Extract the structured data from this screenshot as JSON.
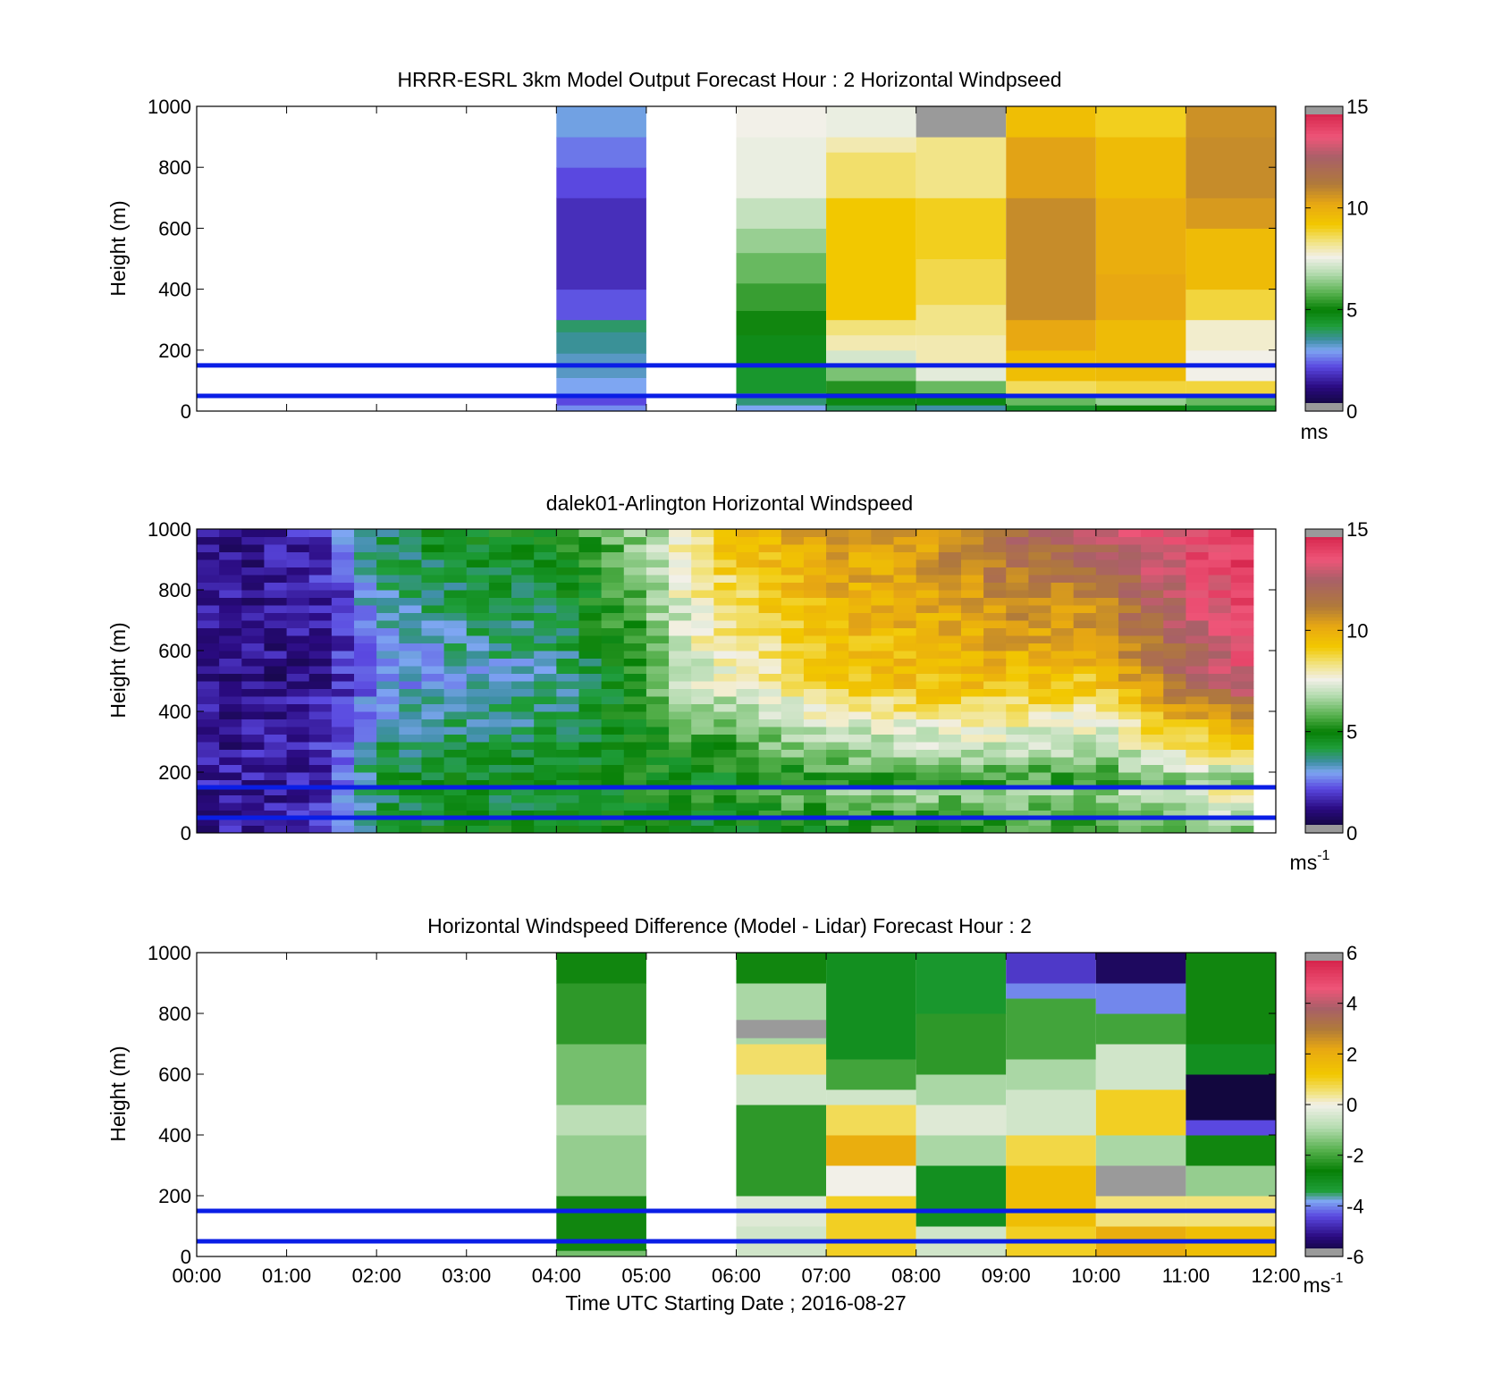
{
  "figure": {
    "x_axis": {
      "label": "Time UTC  Starting Date ; 2016-08-27",
      "ticks": [
        "00:00",
        "01:00",
        "02:00",
        "03:00",
        "04:00",
        "05:00",
        "06:00",
        "07:00",
        "08:00",
        "09:00",
        "10:00",
        "11:00",
        "12:00"
      ]
    },
    "y_ticks": [
      "0",
      "200",
      "400",
      "600",
      "800",
      "1000"
    ],
    "reference_heights_m": [
      50,
      150
    ],
    "reference_line_color": "#0a1ee6"
  },
  "panels": [
    {
      "title": "HRRR-ESRL 3km Model Output   Forecast Hour : 2 Horizontal Windpseed",
      "ylabel": "Height (m)",
      "colorbar": {
        "ticks": [
          "0",
          "5",
          "10",
          "15"
        ],
        "unit": "ms",
        "unit_sup": ""
      }
    },
    {
      "title": "dalek01-Arlington  Horizontal Windspeed",
      "ylabel": "Height (m)",
      "colorbar": {
        "ticks": [
          "0",
          "5",
          "10",
          "15"
        ],
        "unit": "ms",
        "unit_sup": "-1"
      }
    },
    {
      "title": "Horizontal Windspeed Difference (Model - Lidar) Forecast Hour : 2",
      "ylabel": "Height (m)",
      "colorbar": {
        "ticks": [
          "-6",
          "-4",
          "-2",
          "0",
          "2",
          "4",
          "6"
        ],
        "unit": "ms",
        "unit_sup": "-1"
      }
    }
  ],
  "chart_data": [
    {
      "type": "heatmap",
      "title": "HRRR-ESRL 3km Model Output   Forecast Hour : 2 Horizontal Windpseed",
      "xlabel": "",
      "ylabel": "Height (m)",
      "xlim_hours": [
        0,
        12
      ],
      "ylim": [
        0,
        1000
      ],
      "clim": [
        0,
        15
      ],
      "colorbar_unit": "ms",
      "columns": [
        {
          "start_h": 4,
          "end_h": 5,
          "segments": [
            [
              0,
              20,
              2.8
            ],
            [
              20,
              50,
              2.2
            ],
            [
              50,
              110,
              3.0
            ],
            [
              110,
              190,
              3.3
            ],
            [
              190,
              260,
              3.6
            ],
            [
              260,
              300,
              3.9
            ],
            [
              300,
              400,
              2.3
            ],
            [
              400,
              700,
              1.8
            ],
            [
              700,
              800,
              2.2
            ],
            [
              800,
              900,
              2.6
            ],
            [
              900,
              1000,
              3.1
            ]
          ]
        },
        {
          "start_h": 6,
          "end_h": 7,
          "segments": [
            [
              0,
              20,
              3.0
            ],
            [
              20,
              60,
              3.8
            ],
            [
              60,
              150,
              4.4
            ],
            [
              150,
              250,
              4.7
            ],
            [
              250,
              330,
              5.1
            ],
            [
              330,
              420,
              5.5
            ],
            [
              420,
              520,
              6.0
            ],
            [
              520,
              600,
              6.5
            ],
            [
              600,
              700,
              7.0
            ],
            [
              700,
              900,
              7.5
            ],
            [
              900,
              1000,
              7.6
            ]
          ]
        },
        {
          "start_h": 7,
          "end_h": 8,
          "segments": [
            [
              0,
              20,
              4.0
            ],
            [
              20,
              60,
              4.8
            ],
            [
              60,
              100,
              5.3
            ],
            [
              100,
              150,
              6.2
            ],
            [
              150,
              200,
              7.2
            ],
            [
              200,
              250,
              8.0
            ],
            [
              250,
              300,
              8.4
            ],
            [
              300,
              700,
              9.2
            ],
            [
              700,
              850,
              8.5
            ],
            [
              850,
              900,
              8.0
            ],
            [
              900,
              1000,
              7.5
            ]
          ]
        },
        {
          "start_h": 8,
          "end_h": 9,
          "segments": [
            [
              0,
              20,
              3.5
            ],
            [
              20,
              60,
              4.8
            ],
            [
              60,
              100,
              6.0
            ],
            [
              100,
              150,
              7.4
            ],
            [
              150,
              250,
              8.0
            ],
            [
              250,
              350,
              8.3
            ],
            [
              350,
              500,
              8.7
            ],
            [
              500,
              700,
              9.0
            ],
            [
              700,
              900,
              8.3
            ],
            [
              900,
              1000,
              15.2
            ]
          ]
        },
        {
          "start_h": 9,
          "end_h": 10,
          "segments": [
            [
              0,
              20,
              4.5
            ],
            [
              20,
              50,
              6.0
            ],
            [
              50,
              100,
              8.6
            ],
            [
              100,
              200,
              9.5
            ],
            [
              200,
              300,
              10.2
            ],
            [
              300,
              700,
              10.8
            ],
            [
              700,
              900,
              10.3
            ],
            [
              900,
              1000,
              9.5
            ]
          ]
        },
        {
          "start_h": 10,
          "end_h": 11,
          "segments": [
            [
              0,
              20,
              5.0
            ],
            [
              20,
              50,
              6.5
            ],
            [
              50,
              100,
              8.8
            ],
            [
              100,
              300,
              9.6
            ],
            [
              300,
              450,
              10.2
            ],
            [
              450,
              700,
              10.0
            ],
            [
              700,
              900,
              9.6
            ],
            [
              900,
              1000,
              9.0
            ]
          ]
        },
        {
          "start_h": 11,
          "end_h": 12,
          "segments": [
            [
              0,
              20,
              4.5
            ],
            [
              20,
              50,
              6.0
            ],
            [
              50,
              100,
              8.8
            ],
            [
              100,
              200,
              7.6
            ],
            [
              200,
              300,
              7.8
            ],
            [
              300,
              400,
              8.8
            ],
            [
              400,
              600,
              9.6
            ],
            [
              600,
              700,
              10.5
            ],
            [
              700,
              900,
              10.8
            ],
            [
              900,
              1000,
              10.7
            ]
          ]
        }
      ]
    },
    {
      "type": "heatmap",
      "title": "dalek01-Arlington  Horizontal Windspeed",
      "xlabel": "",
      "ylabel": "Height (m)",
      "xlim_hours": [
        0,
        12
      ],
      "ylim": [
        0,
        1000
      ],
      "clim": [
        0,
        15
      ],
      "colorbar_unit": "ms-1",
      "data_end_h": 11.85,
      "time_bins_per_hour": 4,
      "hourly_profile_anchors_ms": [
        {
          "h": 0.0,
          "surface": 1.5,
          "mid": 1.2,
          "top": 1.3
        },
        {
          "h": 1.0,
          "surface": 1.6,
          "mid": 1.2,
          "top": 1.5
        },
        {
          "h": 1.5,
          "surface": 2.0,
          "mid": 1.5,
          "top": 2.0
        },
        {
          "h": 2.0,
          "surface": 4.5,
          "mid": 2.8,
          "top": 4.0
        },
        {
          "h": 3.0,
          "surface": 4.8,
          "mid": 3.2,
          "top": 4.8
        },
        {
          "h": 4.0,
          "surface": 4.6,
          "mid": 3.4,
          "top": 5.0
        },
        {
          "h": 5.0,
          "surface": 4.8,
          "mid": 5.5,
          "top": 6.5
        },
        {
          "h": 5.5,
          "surface": 4.4,
          "mid": 7.2,
          "top": 8.5
        },
        {
          "h": 6.0,
          "surface": 4.5,
          "mid": 7.5,
          "top": 9.5
        },
        {
          "h": 7.0,
          "surface": 5.0,
          "mid": 9.0,
          "top": 10.5
        },
        {
          "h": 8.0,
          "surface": 5.2,
          "mid": 9.5,
          "top": 10.5
        },
        {
          "h": 9.0,
          "surface": 5.3,
          "mid": 9.6,
          "top": 12.0
        },
        {
          "h": 10.0,
          "surface": 5.2,
          "mid": 9.2,
          "top": 12.5
        },
        {
          "h": 11.0,
          "surface": 6.0,
          "mid": 12.0,
          "top": 13.8
        },
        {
          "h": 11.85,
          "surface": 6.0,
          "mid": 13.5,
          "top": 14.5
        }
      ]
    },
    {
      "type": "heatmap",
      "title": "Horizontal Windspeed Difference (Model - Lidar) Forecast Hour : 2",
      "xlabel": "Time UTC  Starting Date ; 2016-08-27",
      "ylabel": "Height (m)",
      "xlim_hours": [
        0,
        12
      ],
      "ylim": [
        0,
        1000
      ],
      "clim": [
        -6,
        6
      ],
      "colorbar_unit": "ms-1",
      "columns": [
        {
          "start_h": 4,
          "end_h": 5,
          "segments": [
            [
              0,
              20,
              -1.5
            ],
            [
              20,
              200,
              -2.5
            ],
            [
              200,
              400,
              -1.2
            ],
            [
              400,
              500,
              -0.8
            ],
            [
              500,
              700,
              -1.5
            ],
            [
              700,
              900,
              -2.2
            ],
            [
              900,
              1000,
              -2.5
            ]
          ]
        },
        {
          "start_h": 6,
          "end_h": 7,
          "segments": [
            [
              0,
              100,
              -0.5
            ],
            [
              100,
              200,
              -0.3
            ],
            [
              200,
              500,
              -2.2
            ],
            [
              500,
              600,
              -0.5
            ],
            [
              600,
              700,
              0.6
            ],
            [
              700,
              720,
              -1.0
            ],
            [
              720,
              780,
              6.1
            ],
            [
              780,
              900,
              -1.0
            ],
            [
              900,
              1000,
              -2.5
            ]
          ]
        },
        {
          "start_h": 7,
          "end_h": 8,
          "segments": [
            [
              0,
              200,
              1.0
            ],
            [
              200,
              300,
              0.0
            ],
            [
              300,
              400,
              2.0
            ],
            [
              400,
              500,
              0.7
            ],
            [
              500,
              550,
              -0.5
            ],
            [
              550,
              650,
              -2.0
            ],
            [
              650,
              1000,
              -3.0
            ]
          ]
        },
        {
          "start_h": 8,
          "end_h": 9,
          "segments": [
            [
              0,
              100,
              -0.5
            ],
            [
              100,
              300,
              -3.0
            ],
            [
              300,
              400,
              -1.0
            ],
            [
              400,
              500,
              -0.3
            ],
            [
              500,
              600,
              -1.0
            ],
            [
              600,
              800,
              -2.2
            ],
            [
              800,
              1000,
              -3.2
            ]
          ]
        },
        {
          "start_h": 9,
          "end_h": 10,
          "segments": [
            [
              0,
              100,
              1.0
            ],
            [
              100,
              300,
              1.5
            ],
            [
              300,
              400,
              0.8
            ],
            [
              400,
              550,
              -0.5
            ],
            [
              550,
              650,
              -1.0
            ],
            [
              650,
              850,
              -2.0
            ],
            [
              850,
              900,
              -4.0
            ],
            [
              900,
              1000,
              -4.6
            ]
          ]
        },
        {
          "start_h": 10,
          "end_h": 11,
          "segments": [
            [
              0,
              100,
              2.0
            ],
            [
              100,
              200,
              0.5
            ],
            [
              200,
              300,
              6.1
            ],
            [
              300,
              400,
              -1.0
            ],
            [
              400,
              550,
              1.0
            ],
            [
              550,
              700,
              -0.5
            ],
            [
              700,
              800,
              -2.0
            ],
            [
              800,
              900,
              -4.0
            ],
            [
              900,
              1000,
              -5.5
            ]
          ]
        },
        {
          "start_h": 11,
          "end_h": 12,
          "segments": [
            [
              0,
              100,
              1.5
            ],
            [
              100,
              200,
              0.5
            ],
            [
              200,
              300,
              -1.2
            ],
            [
              300,
              400,
              -2.5
            ],
            [
              400,
              450,
              -4.4
            ],
            [
              450,
              600,
              -5.8
            ],
            [
              600,
              700,
              -3.0
            ],
            [
              700,
              1000,
              -2.5
            ]
          ]
        }
      ]
    }
  ]
}
